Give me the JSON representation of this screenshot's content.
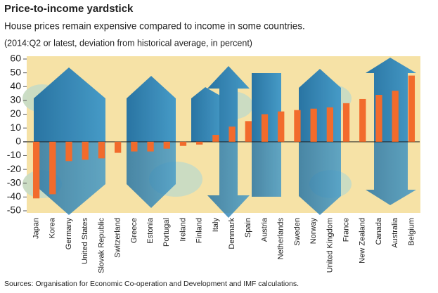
{
  "chart_data": {
    "type": "bar",
    "title": "Price-to-income yardstick",
    "subtitle": "House prices remain expensive compared to income in some countries.",
    "note": "(2014:Q2 or latest, deviation from historical average, in percent)",
    "source": "Sources: Organisation for Economic Co-operation and Development and IMF calculations.",
    "categories": [
      "Japan",
      "Korea",
      "Germany",
      "United States",
      "Slovak Republic",
      "Switzerland",
      "Greece",
      "Estonia",
      "Portugal",
      "Ireland",
      "Finland",
      "Italy",
      "Denmark",
      "Spain",
      "Austria",
      "Netherlands",
      "Sweden",
      "Norway",
      "United Kingdom",
      "France",
      "New Zealand",
      "Canada",
      "Australia",
      "Belgium"
    ],
    "values": [
      -41,
      -38,
      -14,
      -13,
      -12,
      -8,
      -7,
      -7,
      -5,
      -3,
      -2,
      5,
      11,
      15,
      20,
      22,
      23,
      24,
      25,
      28,
      31,
      34,
      37,
      48
    ],
    "color": "#f26b2c",
    "ylim": [
      -50,
      60
    ],
    "yticks": [
      -50,
      -40,
      -30,
      -20,
      -10,
      0,
      10,
      20,
      30,
      40,
      50,
      60
    ],
    "grid": false
  }
}
